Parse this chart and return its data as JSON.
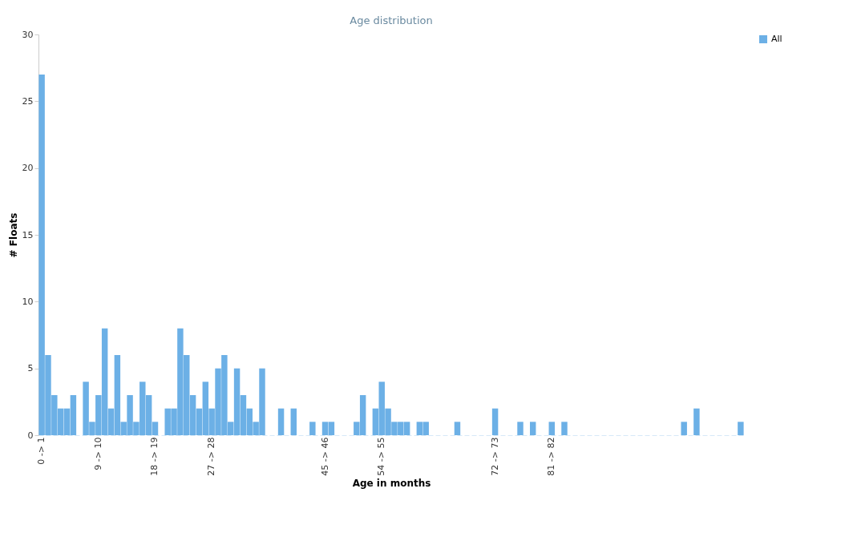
{
  "chart_data": {
    "type": "bar",
    "title": "Age distribution",
    "xlabel": "Age in months",
    "ylabel": "# Floats",
    "categories": [
      "0 -> 1",
      null,
      null,
      null,
      null,
      null,
      null,
      null,
      null,
      "9 -> 10",
      null,
      null,
      null,
      null,
      null,
      null,
      null,
      null,
      "18 -> 19",
      null,
      null,
      null,
      null,
      null,
      null,
      null,
      null,
      "27 -> 28",
      null,
      null,
      null,
      null,
      null,
      null,
      null,
      null,
      null,
      null,
      null,
      null,
      null,
      null,
      null,
      null,
      null,
      "45 -> 46",
      null,
      null,
      null,
      null,
      null,
      null,
      null,
      null,
      "54 -> 55",
      null,
      null,
      null,
      null,
      null,
      null,
      null,
      null,
      null,
      null,
      null,
      null,
      null,
      null,
      null,
      null,
      null,
      "72 -> 73",
      null,
      null,
      null,
      null,
      null,
      null,
      null,
      null,
      "81 -> 82",
      null,
      null,
      null,
      null,
      null,
      null,
      null,
      null,
      null,
      null,
      null,
      null,
      null,
      null,
      null,
      null,
      null,
      null,
      null,
      null,
      null,
      null,
      null,
      null,
      null,
      null,
      null,
      null,
      null,
      null
    ],
    "series": [
      {
        "name": "All",
        "color": "#6cb0e6",
        "values": [
          27,
          6,
          3,
          2,
          2,
          3,
          0,
          4,
          1,
          3,
          8,
          2,
          6,
          1,
          3,
          1,
          4,
          3,
          1,
          0,
          2,
          2,
          8,
          6,
          3,
          2,
          4,
          2,
          5,
          6,
          1,
          5,
          3,
          2,
          1,
          5,
          0,
          0,
          2,
          0,
          2,
          0,
          0,
          1,
          0,
          1,
          1,
          0,
          0,
          0,
          1,
          3,
          0,
          2,
          4,
          2,
          1,
          1,
          1,
          0,
          1,
          1,
          0,
          0,
          0,
          0,
          1,
          0,
          0,
          0,
          0,
          0,
          2,
          0,
          0,
          0,
          1,
          0,
          1,
          0,
          0,
          1,
          0,
          1,
          0,
          0,
          0,
          0,
          0,
          0,
          0,
          0,
          0,
          0,
          0,
          0,
          0,
          0,
          0,
          0,
          0,
          0,
          1,
          0,
          2,
          0,
          0,
          0,
          0,
          0,
          0,
          1
        ]
      }
    ],
    "ylim": [
      0,
      30
    ],
    "yticks": [
      0,
      5,
      10,
      15,
      20,
      25,
      30
    ],
    "grid": false,
    "legend": "right"
  }
}
